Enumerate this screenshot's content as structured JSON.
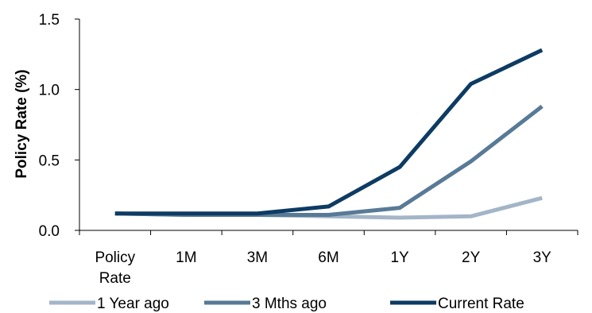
{
  "chart_data": {
    "type": "line",
    "categories": [
      [
        "Policy",
        "Rate"
      ],
      [
        "1M"
      ],
      [
        "3M"
      ],
      [
        "6M"
      ],
      [
        "1Y"
      ],
      [
        "2Y"
      ],
      [
        "3Y"
      ]
    ],
    "ylabel": "Policy Rate (%)",
    "ylim": [
      0,
      1.5
    ],
    "yticks": [
      "0.0",
      "0.5",
      "1.0",
      "1.5"
    ],
    "grid": false,
    "legend_position": "bottom",
    "series": [
      {
        "name": "1 Year ago",
        "color": "#a3b5c7",
        "values": [
          0.12,
          0.11,
          0.11,
          0.1,
          0.09,
          0.1,
          0.23
        ]
      },
      {
        "name": "3 Mths ago",
        "color": "#587a96",
        "values": [
          0.12,
          0.11,
          0.11,
          0.11,
          0.16,
          0.49,
          0.88
        ]
      },
      {
        "name": "Current Rate",
        "color": "#0d3b63",
        "values": [
          0.12,
          0.12,
          0.12,
          0.17,
          0.45,
          1.04,
          1.28
        ]
      }
    ]
  }
}
